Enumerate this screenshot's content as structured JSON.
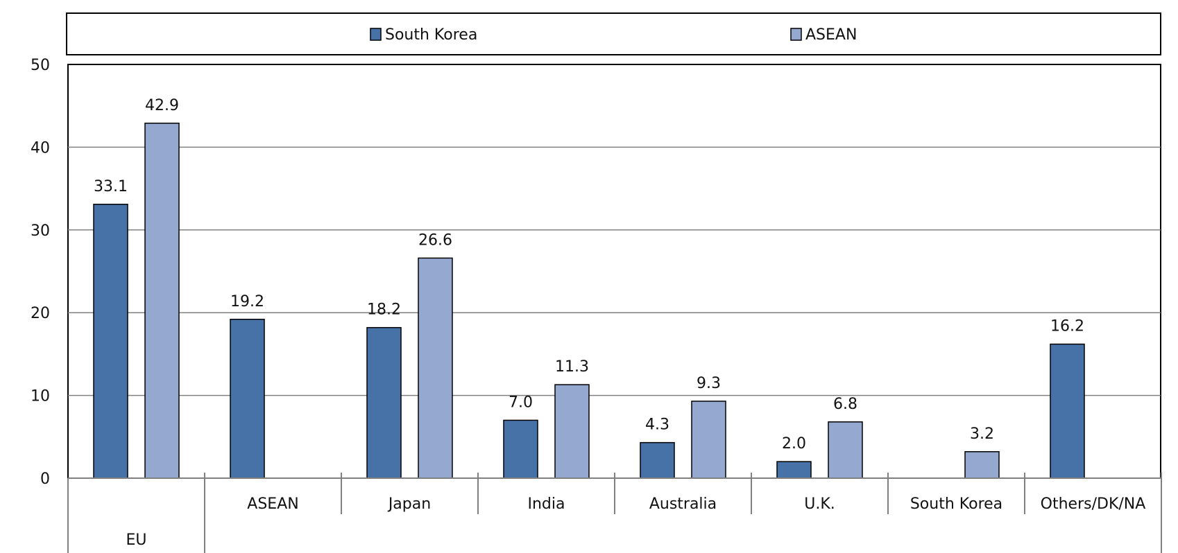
{
  "chart_data": {
    "type": "bar",
    "title": "",
    "xlabel": "",
    "ylabel": "",
    "ylim": [
      0,
      50
    ],
    "yticks": [
      0,
      10,
      20,
      30,
      40,
      50
    ],
    "grid": true,
    "legend_position": "top",
    "categories": [
      "EU",
      "ASEAN",
      "Japan",
      "India",
      "Australia",
      "U.K.",
      "South Korea",
      "Others/DK/NA"
    ],
    "series": [
      {
        "name": "South Korea",
        "color": "#4672a8",
        "values": [
          33.1,
          19.2,
          18.2,
          7.0,
          4.3,
          2.0,
          null,
          16.2
        ],
        "labels": [
          "33.1",
          "19.2",
          "18.2",
          "7.0",
          "4.3",
          "2.0",
          null,
          "16.2"
        ]
      },
      {
        "name": "ASEAN",
        "color": "#95a9d0",
        "values": [
          42.9,
          null,
          26.6,
          11.3,
          9.3,
          6.8,
          3.2,
          null
        ],
        "labels": [
          "42.9",
          null,
          "26.6",
          "11.3",
          "9.3",
          "6.8",
          "3.2",
          null
        ]
      }
    ]
  }
}
